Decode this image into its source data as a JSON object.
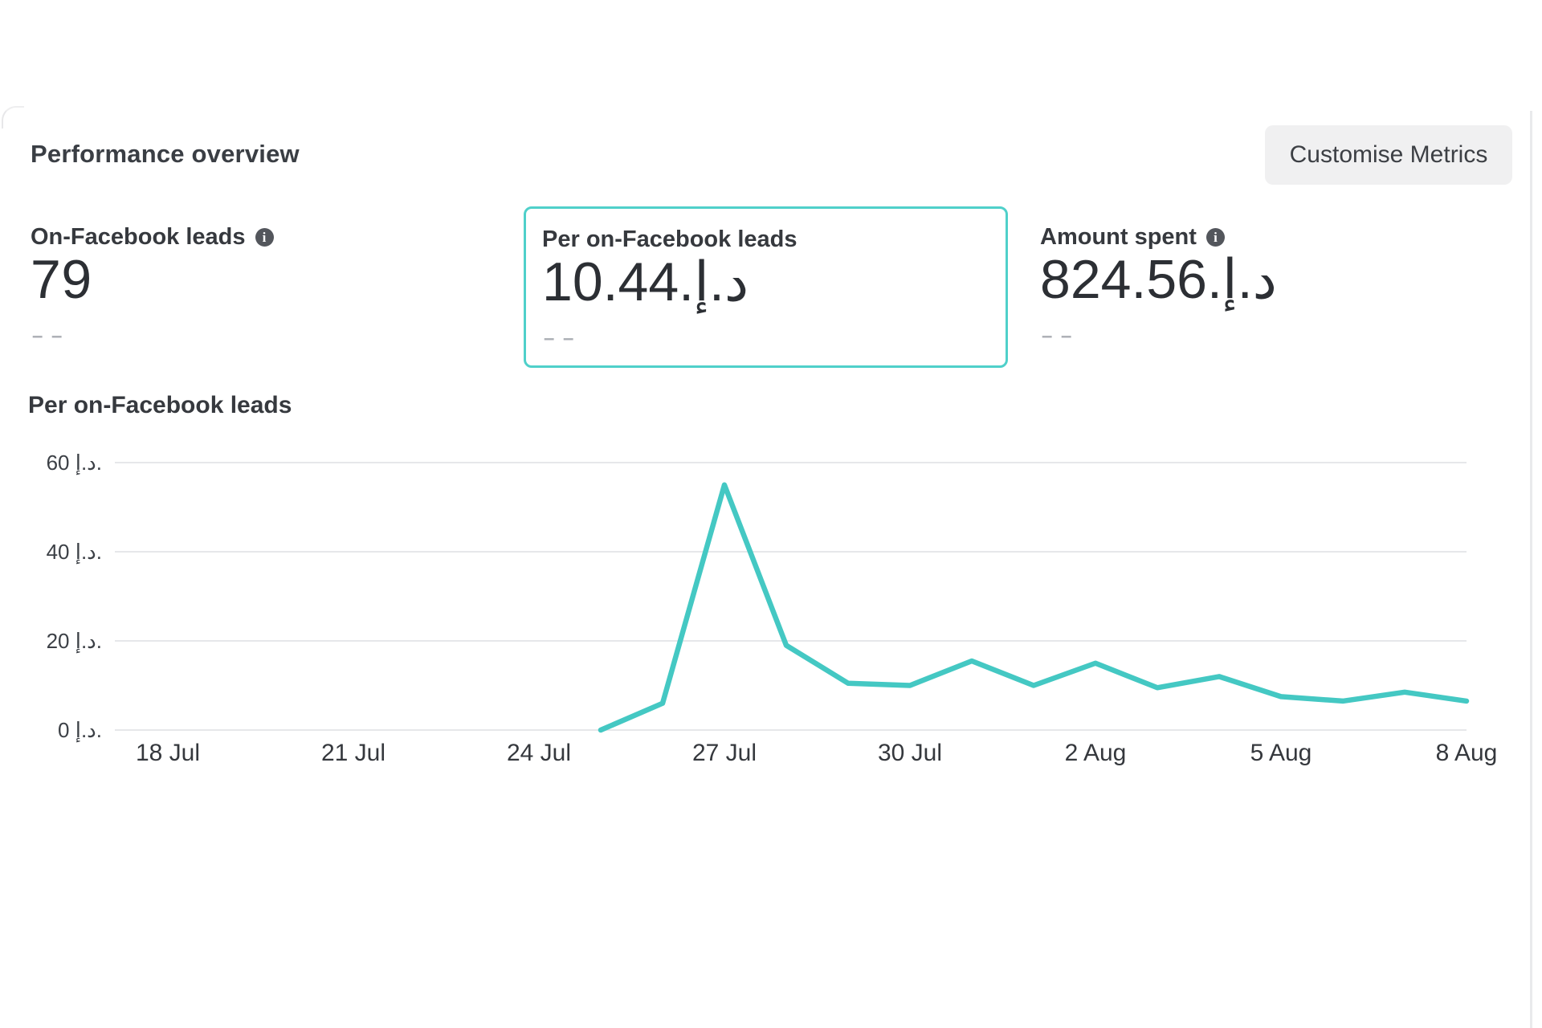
{
  "panel": {
    "title": "Performance overview",
    "customise_metrics_label": "Customise Metrics"
  },
  "metrics": [
    {
      "label": "On-Facebook leads",
      "value": "79",
      "has_info_icon": true,
      "selected": false,
      "comparison_placeholder": "– –"
    },
    {
      "label": "Per on-Facebook leads",
      "value": "10.44.د.إ",
      "has_info_icon": false,
      "selected": true,
      "comparison_placeholder": "– –"
    },
    {
      "label": "Amount spent",
      "value": "824.56.د.إ",
      "has_info_icon": true,
      "selected": false,
      "comparison_placeholder": "– –"
    }
  ],
  "chart_data": {
    "type": "line",
    "title": "Per on-Facebook leads",
    "unit": "د.إ",
    "x": [
      "25 Jul",
      "26 Jul",
      "27 Jul",
      "28 Jul",
      "29 Jul",
      "30 Jul",
      "31 Jul",
      "1 Aug",
      "2 Aug",
      "3 Aug",
      "4 Aug",
      "5 Aug",
      "6 Aug",
      "7 Aug",
      "8 Aug"
    ],
    "values": [
      0,
      6,
      55,
      19,
      10.5,
      10,
      15.5,
      10,
      15,
      9.5,
      12,
      7.5,
      6.5,
      8.5,
      6.5
    ],
    "data_start_day_offset": 7,
    "x_tick_labels": [
      "18 Jul",
      "21 Jul",
      "24 Jul",
      "27 Jul",
      "30 Jul",
      "2 Aug",
      "5 Aug",
      "8 Aug"
    ],
    "x_tick_day_offsets": [
      0,
      3,
      6,
      9,
      12,
      15,
      18,
      21
    ],
    "y_ticks": [
      {
        "value": 0,
        "label": "0 د.إ."
      },
      {
        "value": 20,
        "label": "20 د.إ."
      },
      {
        "value": 40,
        "label": "40 د.إ."
      },
      {
        "value": 60,
        "label": "60 د.إ."
      }
    ],
    "ylim": [
      0,
      60
    ],
    "grid": true,
    "legend_position": "none",
    "line_color": "#44c8c3",
    "selected_card_border_color": "#4fd0ca"
  }
}
